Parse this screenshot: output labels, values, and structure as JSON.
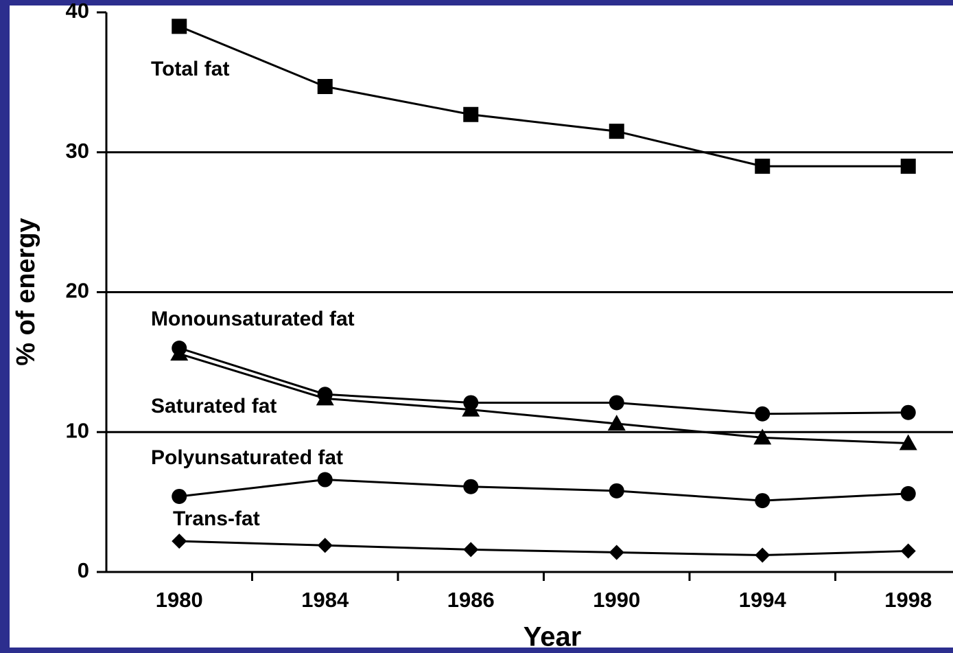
{
  "chart_data": {
    "type": "line",
    "x_label": "Year",
    "y_label": "% of energy",
    "categories": [
      "1980",
      "1984",
      "1986",
      "1990",
      "1994",
      "1998"
    ],
    "ylim": [
      0,
      40
    ],
    "yticks": [
      0,
      10,
      20,
      30,
      40
    ],
    "grid": true,
    "series": [
      {
        "name": "Total fat",
        "color": "#000000",
        "marker": "square",
        "values": [
          39.0,
          34.7,
          32.7,
          31.5,
          29.0,
          29.0
        ]
      },
      {
        "name": "Monounsaturated fat",
        "color": "#000000",
        "marker": "circle",
        "values": [
          16.0,
          12.7,
          12.1,
          12.1,
          11.3,
          11.4
        ]
      },
      {
        "name": "Saturated fat",
        "color": "#000000",
        "marker": "triangle",
        "values": [
          15.6,
          12.4,
          11.6,
          10.6,
          9.6,
          9.2
        ]
      },
      {
        "name": "Polyunsaturated fat",
        "color": "#000000",
        "marker": "circle",
        "values": [
          5.4,
          6.6,
          6.1,
          5.8,
          5.1,
          5.6
        ]
      },
      {
        "name": "Trans-fat",
        "color": "#000000",
        "marker": "diamond",
        "values": [
          2.2,
          1.9,
          1.6,
          1.4,
          1.2,
          1.5
        ]
      }
    ]
  }
}
